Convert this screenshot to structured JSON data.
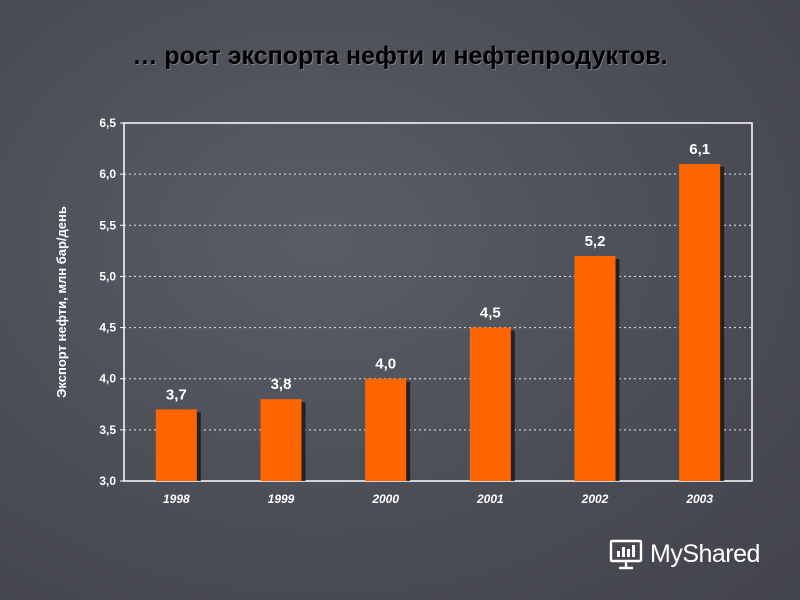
{
  "slide": {
    "title": "… рост экспорта нефти и нефтепродуктов."
  },
  "watermark": {
    "text": "MyShared",
    "icon": "presentation-board-icon"
  },
  "colors": {
    "bar": "#ff6600",
    "bar_shadow": "#1a1a1a",
    "plot_border": "#ffffff",
    "grid": "#e8e8e8"
  },
  "chart_data": {
    "type": "bar",
    "title": "",
    "xlabel": "",
    "ylabel": "Экспорт нефти, млн бар/день",
    "categories": [
      "1998",
      "1999",
      "2000",
      "2001",
      "2002",
      "2003"
    ],
    "values": [
      3.7,
      3.8,
      4.0,
      4.5,
      5.2,
      6.1
    ],
    "data_labels": [
      "3,7",
      "3,8",
      "4,0",
      "4,5",
      "5,2",
      "6,1"
    ],
    "ylim": [
      3.0,
      6.5
    ],
    "yticks": [
      3.0,
      3.5,
      4.0,
      4.5,
      5.0,
      5.5,
      6.0,
      6.5
    ],
    "ytick_labels": [
      "3,0",
      "3,5",
      "4,0",
      "4,5",
      "5,0",
      "5,5",
      "6,0",
      "6,5"
    ],
    "grid": true,
    "grid_style": "dotted",
    "legend": "none"
  }
}
